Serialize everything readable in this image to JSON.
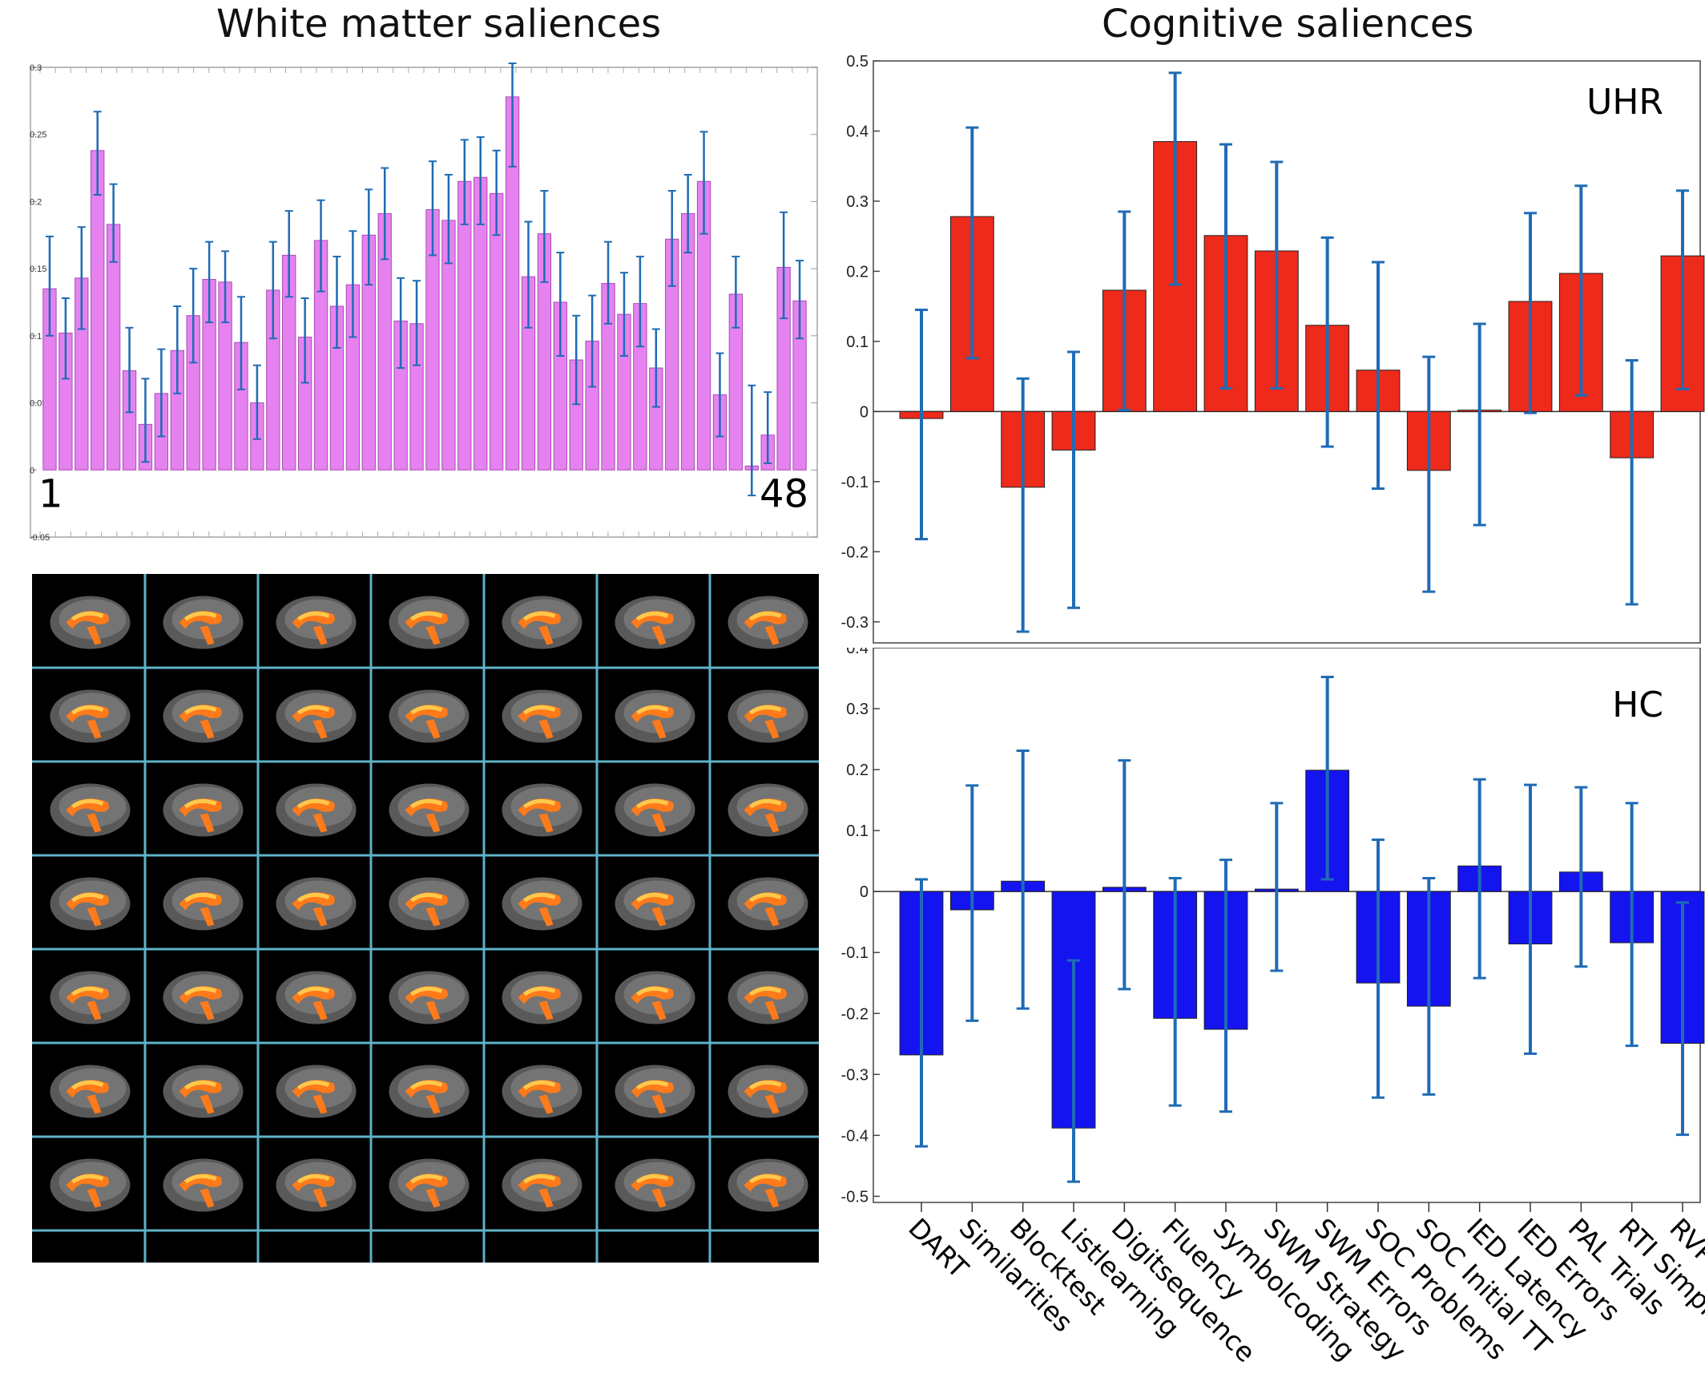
{
  "titles": {
    "white_matter": "White matter saliences",
    "cognitive": "Cognitive saliences"
  },
  "colors": {
    "wm_bar": "#e582ef",
    "uhr_bar": "#ee2a1b",
    "hc_bar": "#1414f0",
    "error_bar": "#1f6bb5",
    "grid_line": "#5fb2c8",
    "brain_fill": "#ff7a1a",
    "brain_highlight": "#ffc84a"
  },
  "chart_data": [
    {
      "type": "bar",
      "title": "White matter saliences",
      "start_label": "1",
      "end_label": "48",
      "ylim": [
        -0.05,
        0.3
      ],
      "yticks": [
        "-0.05",
        "0",
        "0.05",
        "0.1",
        "0.15",
        "0.2",
        "0.25",
        "0.3"
      ],
      "categories": [
        "1",
        "2",
        "3",
        "4",
        "5",
        "6",
        "7",
        "8",
        "9",
        "10",
        "11",
        "12",
        "13",
        "14",
        "15",
        "16",
        "17",
        "18",
        "19",
        "20",
        "21",
        "22",
        "23",
        "24",
        "25",
        "26",
        "27",
        "28",
        "29",
        "30",
        "31",
        "32",
        "33",
        "34",
        "35",
        "36",
        "37",
        "38",
        "39",
        "40",
        "41",
        "42",
        "43",
        "44",
        "45",
        "46",
        "47",
        "48"
      ],
      "values": [
        0.135,
        0.102,
        0.143,
        0.238,
        0.183,
        0.074,
        0.034,
        0.057,
        0.089,
        0.115,
        0.142,
        0.14,
        0.095,
        0.05,
        0.134,
        0.16,
        0.099,
        0.171,
        0.122,
        0.138,
        0.175,
        0.191,
        0.111,
        0.109,
        0.194,
        0.186,
        0.215,
        0.218,
        0.206,
        0.278,
        0.144,
        0.176,
        0.125,
        0.082,
        0.096,
        0.139,
        0.116,
        0.124,
        0.076,
        0.172,
        0.191,
        0.215,
        0.056,
        0.131,
        0.003,
        0.026,
        0.151,
        0.126
      ],
      "err_low": [
        0.1,
        0.068,
        0.105,
        0.205,
        0.155,
        0.043,
        0.006,
        0.025,
        0.057,
        0.08,
        0.11,
        0.11,
        0.06,
        0.023,
        0.098,
        0.129,
        0.065,
        0.133,
        0.091,
        0.099,
        0.138,
        0.157,
        0.076,
        0.078,
        0.16,
        0.154,
        0.183,
        0.183,
        0.175,
        0.226,
        0.106,
        0.14,
        0.085,
        0.049,
        0.062,
        0.109,
        0.085,
        0.092,
        0.047,
        0.137,
        0.162,
        0.176,
        0.025,
        0.106,
        -0.019,
        0.005,
        0.113,
        0.098
      ],
      "err_high": [
        0.174,
        0.128,
        0.181,
        0.267,
        0.213,
        0.106,
        0.068,
        0.09,
        0.122,
        0.15,
        0.17,
        0.163,
        0.129,
        0.078,
        0.17,
        0.193,
        0.128,
        0.201,
        0.159,
        0.178,
        0.209,
        0.225,
        0.143,
        0.141,
        0.23,
        0.22,
        0.246,
        0.248,
        0.238,
        0.303,
        0.185,
        0.208,
        0.162,
        0.115,
        0.13,
        0.17,
        0.147,
        0.159,
        0.105,
        0.208,
        0.22,
        0.252,
        0.087,
        0.159,
        0.063,
        0.058,
        0.192,
        0.156
      ]
    },
    {
      "type": "bar",
      "label": "UHR",
      "ylim": [
        -0.33,
        0.5
      ],
      "yticks": [
        "-0.3",
        "-0.2",
        "-0.1",
        "0",
        "0.1",
        "0.2",
        "0.3",
        "0.4",
        "0.5"
      ],
      "categories": [
        "DART",
        "Similarities",
        "Blocktest",
        "Listlearning",
        "Digitsequence",
        "Fluency",
        "Symbolcoding",
        "SWM Strategy",
        "SWM Errors",
        "SOC Problems",
        "SOC Initial TT",
        "IED Latency",
        "IED Errors",
        "PAL Trials",
        "RTI Simple",
        "RVP-A’"
      ],
      "values": [
        -0.01,
        0.278,
        -0.108,
        -0.055,
        0.173,
        0.385,
        0.251,
        0.229,
        0.123,
        0.059,
        -0.084,
        0.002,
        0.157,
        0.197,
        -0.066,
        0.222
      ],
      "err_low": [
        -0.182,
        0.076,
        -0.314,
        -0.28,
        0.002,
        0.181,
        0.033,
        0.033,
        -0.05,
        -0.11,
        -0.257,
        -0.162,
        -0.002,
        0.023,
        -0.275,
        0.032
      ],
      "err_high": [
        0.145,
        0.405,
        0.047,
        0.085,
        0.285,
        0.483,
        0.381,
        0.356,
        0.248,
        0.213,
        0.078,
        0.125,
        0.283,
        0.322,
        0.073,
        0.315
      ]
    },
    {
      "type": "bar",
      "label": "HC",
      "ylim": [
        -0.51,
        0.4
      ],
      "yticks": [
        "-0.5",
        "-0.4",
        "-0.3",
        "-0.2",
        "-0.1",
        "0",
        "0.1",
        "0.2",
        "0.3",
        "0.4"
      ],
      "categories": [
        "DART",
        "Similarities",
        "Blocktest",
        "Listlearning",
        "Digitsequence",
        "Fluency",
        "Symbolcoding",
        "SWM Strategy",
        "SWM Errors",
        "SOC Problems",
        "SOC Initial TT",
        "IED Latency",
        "IED Errors",
        "PAL Trials",
        "RTI Simple",
        "RVP-A’"
      ],
      "values": [
        -0.268,
        -0.03,
        0.017,
        -0.388,
        0.007,
        -0.208,
        -0.226,
        0.004,
        0.199,
        -0.15,
        -0.188,
        0.042,
        -0.086,
        0.032,
        -0.084,
        -0.249
      ],
      "err_low": [
        -0.418,
        -0.212,
        -0.192,
        -0.476,
        -0.16,
        -0.351,
        -0.361,
        -0.13,
        0.02,
        -0.338,
        -0.333,
        -0.142,
        -0.266,
        -0.123,
        -0.253,
        -0.399
      ],
      "err_high": [
        0.02,
        0.174,
        0.231,
        -0.113,
        0.215,
        0.022,
        0.052,
        0.145,
        0.352,
        0.085,
        0.022,
        0.184,
        0.175,
        0.171,
        0.145,
        -0.018
      ]
    }
  ]
}
